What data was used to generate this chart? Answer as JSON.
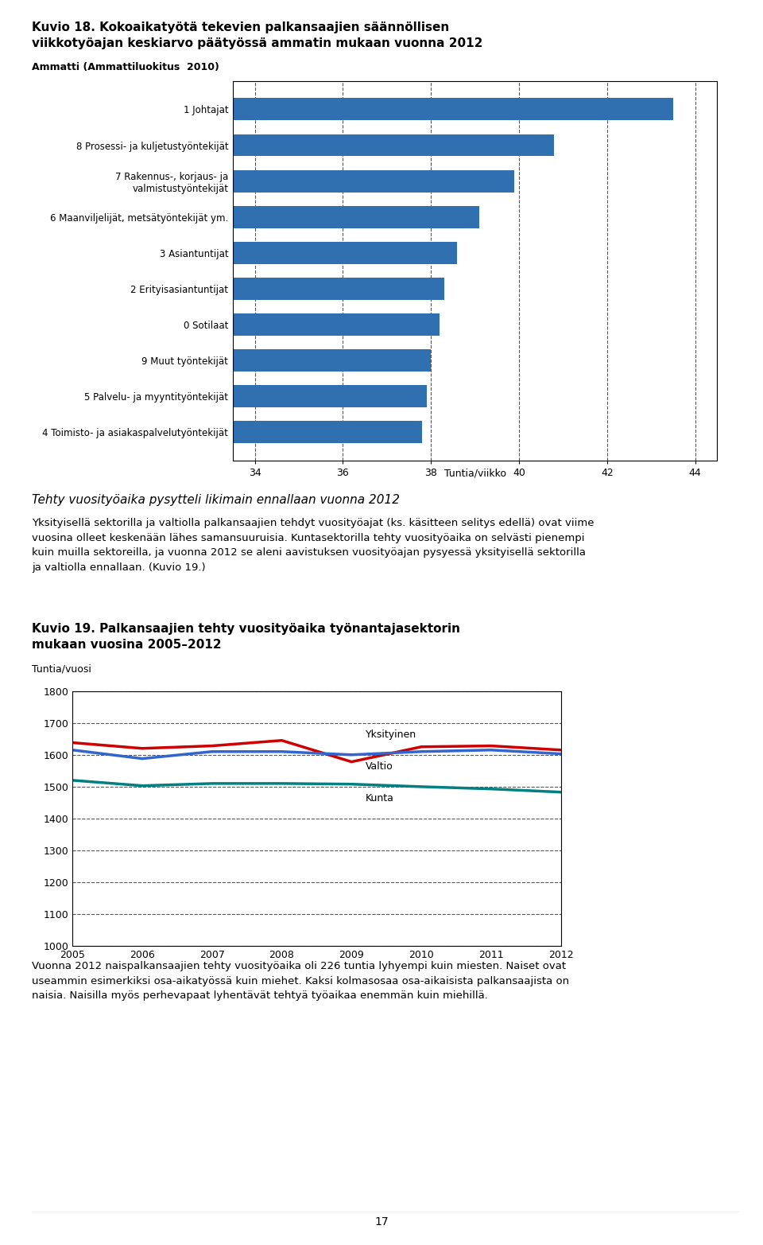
{
  "fig18_title_line1": "Kuvio 18. Kokoaikatyötä tekevien palkansaajien säännöllisen",
  "fig18_title_line2": "viikkotyöajan keskiarvo päätyössä ammatin mukaan vuonna 2012",
  "fig18_ammatti_label": "Ammatti (Ammattiluokitus  2010)",
  "fig18_xlabel": "Tuntia/viikko",
  "fig18_categories": [
    "4 Toimisto- ja asiakaspalvelutyöntekijät",
    "5 Palvelu- ja myyntityöntekijät",
    "9 Muut työntekijät",
    "0 Sotilaat",
    "2 Erityisasiantuntijat",
    "3 Asiantuntijat",
    "6 Maanviljelijät, metsätyöntekijät ym.",
    "7 Rakennus-, korjaus- ja\nvalmistustyöntekijät",
    "8 Prosessi- ja kuljetustyöntekijät",
    "1 Johtajat"
  ],
  "fig18_values": [
    37.8,
    37.9,
    38.0,
    38.2,
    38.3,
    38.6,
    39.1,
    39.9,
    40.8,
    43.5
  ],
  "fig18_bar_color": "#3070B0",
  "fig18_xlim": [
    33.5,
    44.5
  ],
  "fig18_xticks": [
    34,
    36,
    38,
    40,
    42,
    44
  ],
  "fig19_title_line1": "Kuvio 19. Palkansaajien tehty vuosityöaika työnantajasektorin",
  "fig19_title_line2": "mukaan vuosina 2005–2012",
  "fig19_ylabel": "Tuntia/vuosi",
  "fig19_years": [
    2005,
    2006,
    2007,
    2008,
    2009,
    2010,
    2011,
    2012
  ],
  "fig19_yksityinen": [
    1638,
    1620,
    1628,
    1645,
    1578,
    1625,
    1628,
    1615
  ],
  "fig19_valtio": [
    1615,
    1588,
    1610,
    1610,
    1600,
    1610,
    1615,
    1603
  ],
  "fig19_kunta": [
    1520,
    1503,
    1510,
    1510,
    1508,
    1500,
    1493,
    1483
  ],
  "fig19_color_yksityinen": "#CC0000",
  "fig19_color_valtio": "#3366CC",
  "fig19_color_kunta": "#008080",
  "fig19_ylim": [
    1000,
    1800
  ],
  "fig19_yticks": [
    1000,
    1100,
    1200,
    1300,
    1400,
    1500,
    1600,
    1700,
    1800
  ],
  "italic_heading": "Tehty vuosityöaika pysytteli likimain ennallaan vuonna 2012",
  "para1_line1": "Yksityisellä sektorilla ja valtiolla palkansaajien tehdyt vuosityöajat (ks. käsitteen selitys edellä) ovat viime",
  "para1_line2": "vuosina olleet keskenään lähes samansuuruisia. Kuntasektorilla tehty vuosityöaika on selvästi pienempi",
  "para1_line3": "kuin muilla sektoreilla, ja vuonna 2012 se aleni aavistuksen vuosityöajan pysyessä yksityisellä sektorilla",
  "para1_line4": "ja valtiolla ennallaan. (Kuvio 19.)",
  "para2_line1": "Vuonna 2012 naispalkansaajien tehty vuosityöaika oli 226 tuntia lyhyempi kuin miesten. Naiset ovat",
  "para2_line2": "useammin esimerkiksi osa-aikatyössä kuin miehet. Kaksi kolmasosaa osa-aikaisista palkansaajista on",
  "para2_line3": "naisia. Naisilla myös perhevapaat lyhentävät tehtyä työaikaa enemmän kuin miehillä.",
  "page_number": "17"
}
